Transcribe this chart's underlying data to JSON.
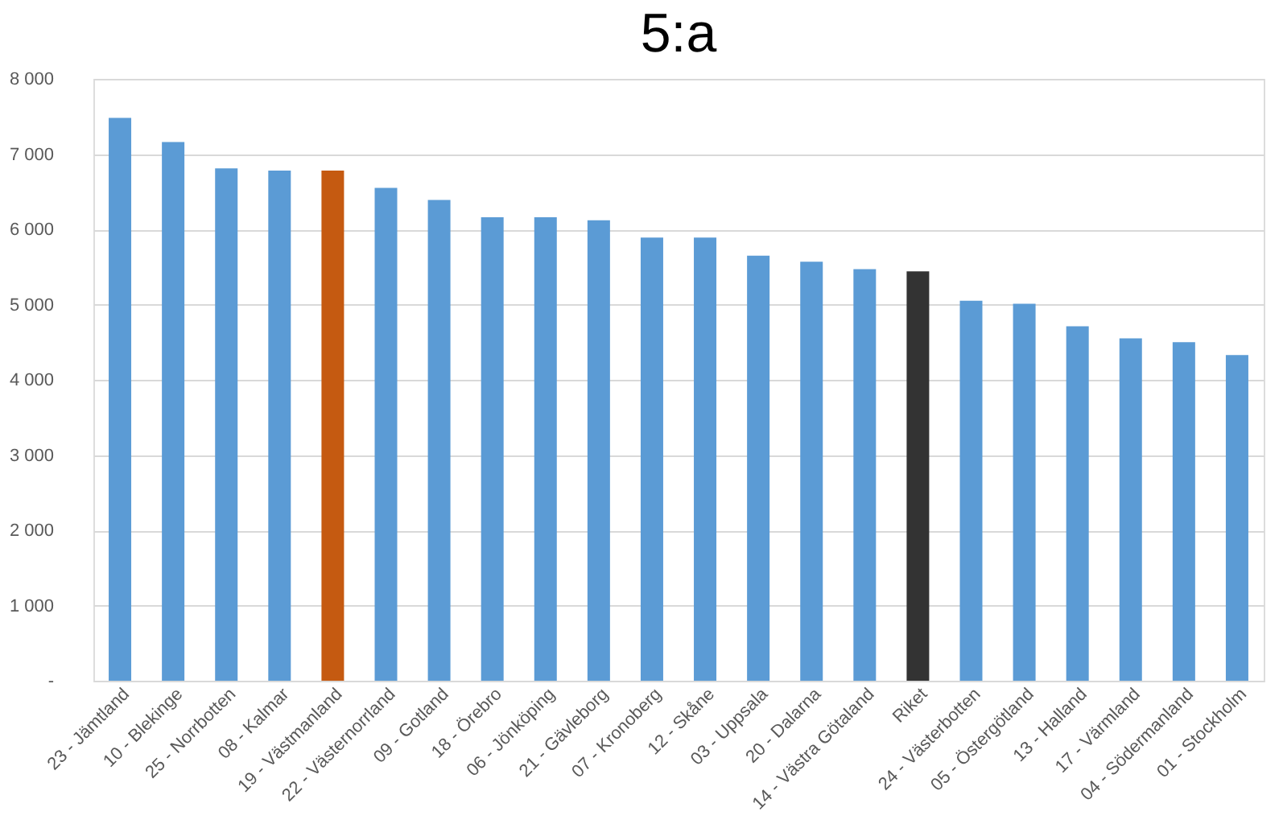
{
  "chart_data": {
    "type": "bar",
    "title": "5:a",
    "categories": [
      "23 - Jämtland",
      "10 - Blekinge",
      "25 - Norrbotten",
      "08 - Kalmar",
      "19 - Västmanland",
      "22 - Västernorrland",
      "09 - Gotland",
      "18 - Örebro",
      "06 - Jönköping",
      "21 - Gävleborg",
      "07 - Kronoberg",
      "12 - Skåne",
      "03 - Uppsala",
      "20 - Dalarna",
      "14 - Västra Götaland",
      "Riket",
      "24 - Västerbotten",
      "05 - Östergötland",
      "13 - Halland",
      "17 - Värmland",
      "04 - Södermanland",
      "01 - Stockholm"
    ],
    "values": [
      7480,
      7160,
      6810,
      6780,
      6780,
      6550,
      6390,
      6160,
      6160,
      6120,
      5890,
      5890,
      5650,
      5570,
      5470,
      5440,
      5050,
      5010,
      4710,
      4550,
      4500,
      4330
    ],
    "colors": [
      "#5b9bd5",
      "#5b9bd5",
      "#5b9bd5",
      "#5b9bd5",
      "#c55a11",
      "#5b9bd5",
      "#5b9bd5",
      "#5b9bd5",
      "#5b9bd5",
      "#5b9bd5",
      "#5b9bd5",
      "#5b9bd5",
      "#5b9bd5",
      "#5b9bd5",
      "#5b9bd5",
      "#333333",
      "#5b9bd5",
      "#5b9bd5",
      "#5b9bd5",
      "#5b9bd5",
      "#5b9bd5",
      "#5b9bd5"
    ],
    "ylim": [
      0,
      8000
    ],
    "yticks": [
      {
        "value": 0,
        "label": "-"
      },
      {
        "value": 1000,
        "label": "1 000"
      },
      {
        "value": 2000,
        "label": "2 000"
      },
      {
        "value": 3000,
        "label": "3 000"
      },
      {
        "value": 4000,
        "label": "4 000"
      },
      {
        "value": 5000,
        "label": "5 000"
      },
      {
        "value": 6000,
        "label": "6 000"
      },
      {
        "value": 7000,
        "label": "7 000"
      },
      {
        "value": 8000,
        "label": "8 000"
      }
    ],
    "grid": "y"
  }
}
